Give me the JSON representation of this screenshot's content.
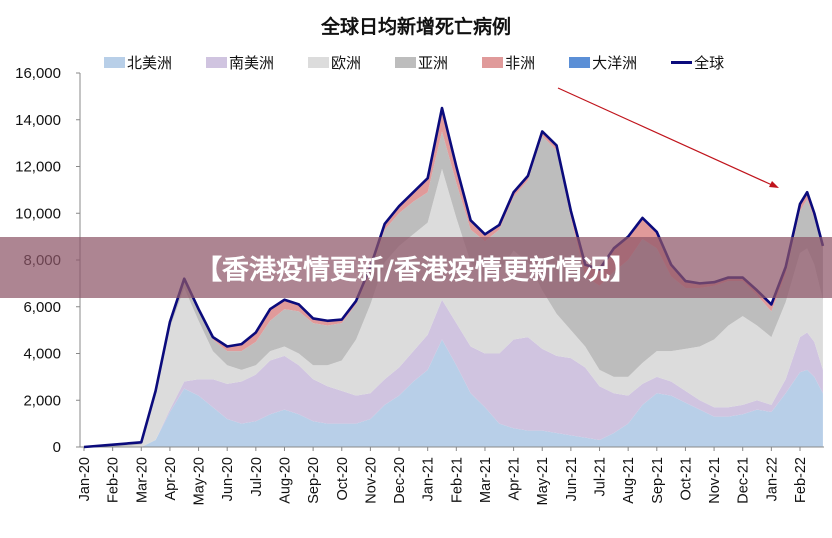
{
  "chart_data": {
    "type": "area",
    "stacked": true,
    "title": "全球日均新增死亡病例",
    "xlabel": "",
    "ylabel": "",
    "ylim": [
      0,
      16000
    ],
    "yticks": [
      0,
      2000,
      4000,
      6000,
      8000,
      10000,
      12000,
      14000,
      16000
    ],
    "ytick_labels": [
      "0",
      "2,000",
      "4,000",
      "6,000",
      "8,000",
      "10,000",
      "12,000",
      "14,000",
      "16,000"
    ],
    "xtick_labels": [
      "Jan-20",
      "Feb-20",
      "Mar-20",
      "Apr-20",
      "May-20",
      "Jun-20",
      "Jul-20",
      "Aug-20",
      "Sep-20",
      "Oct-20",
      "Nov-20",
      "Dec-20",
      "Jan-21",
      "Feb-21",
      "Mar-21",
      "Apr-21",
      "May-21",
      "Jun-21",
      "Jul-21",
      "Aug-21",
      "Sep-21",
      "Oct-21",
      "Nov-21",
      "Dec-21",
      "Jan-22",
      "Feb-22"
    ],
    "x_unit": "months since Jan-20",
    "x": [
      0,
      1,
      2,
      2.5,
      3,
      3.5,
      4,
      4.5,
      5,
      5.5,
      6,
      6.5,
      7,
      7.5,
      8,
      8.5,
      9,
      9.5,
      10,
      10.5,
      11,
      11.5,
      12,
      12.5,
      13,
      13.5,
      14,
      14.5,
      15,
      15.5,
      16,
      16.5,
      17,
      17.5,
      18,
      18.5,
      19,
      19.5,
      20,
      20.5,
      21,
      21.5,
      22,
      22.5,
      23,
      23.5,
      24,
      24.5,
      25,
      25.25,
      25.5,
      25.8
    ],
    "legend_position": "top",
    "series": [
      {
        "name": "北美洲",
        "color": "#b8cfe8",
        "values": [
          0,
          0,
          0,
          300,
          1500,
          2500,
          2200,
          1700,
          1200,
          1000,
          1100,
          1400,
          1600,
          1400,
          1100,
          1000,
          1000,
          1000,
          1200,
          1800,
          2200,
          2800,
          3300,
          4600,
          3500,
          2300,
          1700,
          1000,
          800,
          700,
          700,
          600,
          500,
          400,
          300,
          600,
          1000,
          1800,
          2300,
          2200,
          1900,
          1600,
          1300,
          1300,
          1400,
          1600,
          1500,
          2300,
          3200,
          3300,
          3000,
          2300
        ]
      },
      {
        "name": "南美洲",
        "color": "#d0c4e0",
        "values": [
          0,
          0,
          0,
          0,
          100,
          300,
          700,
          1200,
          1500,
          1800,
          2000,
          2300,
          2300,
          2100,
          1800,
          1600,
          1400,
          1200,
          1100,
          1100,
          1200,
          1300,
          1500,
          1700,
          1800,
          2000,
          2300,
          3000,
          3800,
          4000,
          3500,
          3300,
          3300,
          3000,
          2300,
          1700,
          1200,
          900,
          700,
          600,
          500,
          400,
          400,
          400,
          400,
          400,
          300,
          600,
          1500,
          1600,
          1500,
          1000
        ]
      },
      {
        "name": "欧洲",
        "color": "#dcdcdc",
        "values": [
          0,
          0,
          100,
          2000,
          3500,
          4000,
          2500,
          1200,
          800,
          500,
          400,
          400,
          400,
          500,
          600,
          900,
          1300,
          2400,
          3800,
          5000,
          5200,
          5000,
          4800,
          5600,
          4500,
          3600,
          3200,
          3500,
          3800,
          3200,
          2500,
          1800,
          1200,
          900,
          700,
          700,
          800,
          900,
          1100,
          1300,
          1800,
          2300,
          2900,
          3500,
          3800,
          3200,
          2900,
          3300,
          3600,
          3600,
          3300,
          3000
        ]
      },
      {
        "name": "亚洲",
        "color": "#bdbdbd",
        "values": [
          0,
          100,
          100,
          100,
          200,
          300,
          400,
          500,
          600,
          800,
          1000,
          1300,
          1600,
          1800,
          1800,
          1700,
          1600,
          1500,
          1400,
          1400,
          1400,
          1400,
          1300,
          1600,
          1500,
          1400,
          1600,
          1800,
          2300,
          3500,
          6600,
          7000,
          4800,
          3000,
          3600,
          4500,
          5000,
          5300,
          4400,
          3200,
          2600,
          2500,
          2300,
          1900,
          1500,
          1300,
          1100,
          1200,
          1800,
          2100,
          2000,
          2200
        ]
      },
      {
        "name": "非洲",
        "color": "#e09a9a",
        "values": [
          0,
          0,
          0,
          0,
          50,
          100,
          100,
          100,
          200,
          300,
          400,
          500,
          400,
          300,
          200,
          200,
          150,
          150,
          200,
          250,
          300,
          400,
          600,
          1000,
          700,
          400,
          300,
          200,
          200,
          200,
          200,
          200,
          300,
          500,
          700,
          1000,
          1000,
          900,
          700,
          500,
          300,
          200,
          150,
          150,
          150,
          200,
          300,
          300,
          300,
          300,
          200,
          100
        ]
      },
      {
        "name": "大洋洲",
        "color": "#5b8fd6",
        "values": [
          0,
          0,
          0,
          0,
          0,
          0,
          0,
          0,
          0,
          0,
          0,
          0,
          0,
          0,
          0,
          0,
          0,
          0,
          0,
          0,
          0,
          0,
          0,
          0,
          0,
          0,
          0,
          0,
          0,
          0,
          0,
          0,
          0,
          0,
          0,
          0,
          0,
          0,
          0,
          0,
          0,
          0,
          0,
          0,
          0,
          0,
          0,
          0,
          0,
          0,
          0,
          0
        ]
      }
    ],
    "line": {
      "name": "全球",
      "color": "#0b0b7c",
      "values": [
        0,
        100,
        200,
        2400,
        5350,
        7200,
        5900,
        4700,
        4300,
        4400,
        4900,
        5900,
        6300,
        6100,
        5500,
        5400,
        5450,
        6250,
        7700,
        9550,
        10300,
        10900,
        11500,
        14500,
        12000,
        9700,
        9100,
        9500,
        10900,
        11600,
        13500,
        12900,
        10100,
        7800,
        7600,
        8500,
        9000,
        9800,
        9200,
        7800,
        7100,
        7000,
        7050,
        7250,
        7250,
        6700,
        6100,
        7700,
        10400,
        10900,
        10000,
        8600
      ]
    },
    "annotation_arrow_color": "#c0141c"
  },
  "banner": {
    "text": "【香港疫情更新/香港疫情更新情况】"
  }
}
